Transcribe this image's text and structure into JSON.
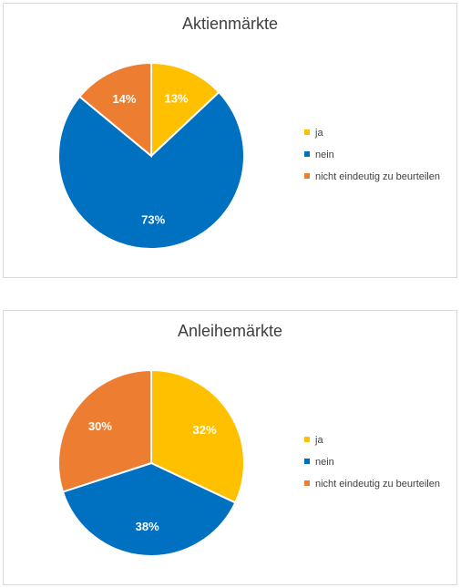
{
  "chart_data": [
    {
      "type": "pie",
      "title": "Aktienmärkte",
      "categories": [
        "ja",
        "nein",
        "nicht eindeutig zu beurteilen"
      ],
      "values": [
        13,
        73,
        14
      ],
      "labels": [
        "13%",
        "73%",
        "14%"
      ],
      "colors": [
        "#FFC000",
        "#0070C0",
        "#ED7D31"
      ],
      "legend_position": "right"
    },
    {
      "type": "pie",
      "title": "Anleihemärkte",
      "categories": [
        "ja",
        "nein",
        "nicht eindeutig zu beurteilen"
      ],
      "values": [
        32,
        38,
        30
      ],
      "labels": [
        "32%",
        "38%",
        "30%"
      ],
      "colors": [
        "#FFC000",
        "#0070C0",
        "#ED7D31"
      ],
      "legend_position": "right"
    }
  ]
}
